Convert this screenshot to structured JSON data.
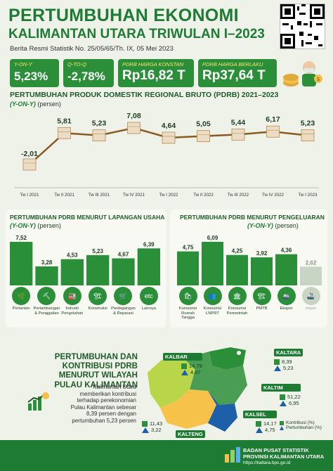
{
  "header": {
    "title_line1": "PERTUMBUHAN EKONOMI",
    "title_line2": "KALIMANTAN UTARA TRIWULAN I–2023",
    "release": "Berita Resmi Statistik No. 25/05/65/Th. IX, 05 Mei 2023"
  },
  "stats": [
    {
      "label": "Y-ON-Y",
      "value": "5,23%"
    },
    {
      "label": "Q-TO-Q",
      "value": "-2,78%"
    },
    {
      "label": "PDRB HARGA KONSTAN",
      "value": "Rp16,82 T"
    },
    {
      "label": "PDRB HARGA BERLAKU",
      "value": "Rp37,64 T"
    }
  ],
  "colors": {
    "primary": "#2b8f3a",
    "dark": "#1e7b34",
    "line": "#8a5a1f",
    "blue": "#1d5fa8",
    "faded": "#c9d4c4",
    "bg": "#eef2e8"
  },
  "chart_data": [
    {
      "type": "line",
      "title": "PERTUMBUHAN PRODUK DOMESTIK REGIONAL BRUTO (PDRB) 2021–2023",
      "subtitle_em": "(Y-ON-Y)",
      "subtitle_unit": "(persen)",
      "categories": [
        "Tw I 2021",
        "Tw II 2021",
        "Tw III 2021",
        "Tw IV 2021",
        "Tw I 2022",
        "Tw II 2022",
        "Tw III 2022",
        "Tw IV 2022",
        "Tw I 2023"
      ],
      "values": [
        -2.01,
        5.81,
        5.23,
        7.08,
        4.64,
        5.05,
        5.44,
        6.17,
        5.23
      ],
      "value_labels": [
        "-2,01",
        "5,81",
        "5,23",
        "7,08",
        "4,64",
        "5,05",
        "5,44",
        "6,17",
        "5,23"
      ]
    },
    {
      "type": "bar",
      "title": "PERTUMBUHAN PDRB MENURUT LAPANGAN USAHA",
      "subtitle_em": "(Y-ON-Y)",
      "subtitle_unit": "(persen)",
      "categories": [
        "Pertanian",
        "Pertambangan & Penggalian",
        "Industri Pengolahan",
        "Konstruksi",
        "Perdagangan & Reparasi",
        "Lainnya"
      ],
      "values": [
        7.52,
        3.28,
        4.53,
        5.23,
        4.67,
        6.39
      ],
      "value_labels": [
        "7,52",
        "3,28",
        "4,53",
        "5,23",
        "4,67",
        "6,39"
      ],
      "icon_glyphs": [
        "🌿",
        "⛏",
        "🏭",
        "🏗",
        "🛒",
        "etc"
      ],
      "icons": [
        "leaf-icon",
        "mining-icon",
        "factory-icon",
        "crane-icon",
        "cart-icon",
        "etc-icon"
      ]
    },
    {
      "type": "bar",
      "title": "PERTUMBUHAN PDRB MENURUT PENGELUARAN",
      "subtitle_em": "(Y-ON-Y)",
      "subtitle_unit": "(persen)",
      "categories": [
        "Konsumsi Rumah Tangga",
        "Konsumsi LNPRT",
        "Konsumsi Pemerintah",
        "PMTB",
        "Ekspor",
        "Impor"
      ],
      "values": [
        4.75,
        6.09,
        4.25,
        3.92,
        4.36,
        2.62
      ],
      "value_labels": [
        "4,75",
        "6,09",
        "4,25",
        "3,92",
        "4,36",
        "2,62"
      ],
      "faded": [
        false,
        false,
        false,
        false,
        false,
        true
      ],
      "icon_glyphs": [
        "🛍",
        "👥",
        "🏛",
        "🏗",
        "🚢",
        "🚢"
      ],
      "icons": [
        "household-icon",
        "lnprt-icon",
        "government-icon",
        "pmtb-icon",
        "ship-icon",
        "container-icon"
      ]
    }
  ],
  "regional": {
    "title_lines": [
      "PERTUMBUHAN DAN",
      "KONTRIBUSI PDRB",
      "MENURUT WILAYAH",
      "PULAU KALIMANTAN"
    ],
    "desc_lines": [
      "Kalimantan Utara",
      "memberikan kontribusi",
      "terhadap perekonomian",
      "Pulau Kalimantan sebesar",
      "8,39 persen dengan",
      "pertumbuhan 5,23 persen"
    ],
    "provinces": [
      {
        "name": "KALTARA",
        "kontribusi": "8,39",
        "pertumbuhan": "5,23"
      },
      {
        "name": "KALBAR",
        "kontribusi": "14,79",
        "pertumbuhan": "4,67"
      },
      {
        "name": "KALTIM",
        "kontribusi": "51,22",
        "pertumbuhan": "6,95"
      },
      {
        "name": "KALSEL",
        "kontribusi": "14,17",
        "pertumbuhan": "4,75"
      },
      {
        "name": "KALTENG",
        "kontribusi": "11,43",
        "pertumbuhan": "3,22"
      }
    ],
    "legend": [
      "Kontribusi (%)",
      "Pertumbuhan (%)"
    ]
  },
  "footer": {
    "line1": "BADAN PUSAT STATISTIK",
    "line2": "PROVINSI KALIMANTAN UTARA",
    "url": "https://kaltara.bps.go.id"
  }
}
